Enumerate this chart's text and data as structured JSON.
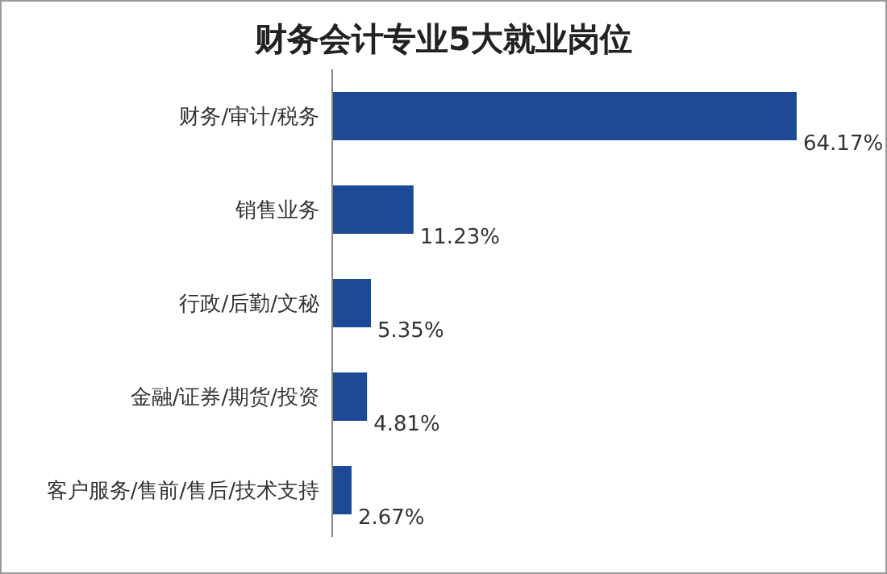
{
  "chart_data": {
    "type": "bar",
    "orientation": "horizontal",
    "title": "财务会计专业5大就业岗位",
    "categories": [
      "财务/审计/税务",
      "销售业务",
      "行政/后勤/文秘",
      "金融/证券/期货/投资",
      "客户服务/售前/售后/技术支持"
    ],
    "values": [
      64.17,
      11.23,
      5.35,
      4.81,
      2.67
    ],
    "value_labels": [
      "64.17%",
      "11.23%",
      "5.35%",
      "4.81%",
      "2.67%"
    ],
    "color": "#1c4a96",
    "tick_labels": "y",
    "grid": false
  }
}
